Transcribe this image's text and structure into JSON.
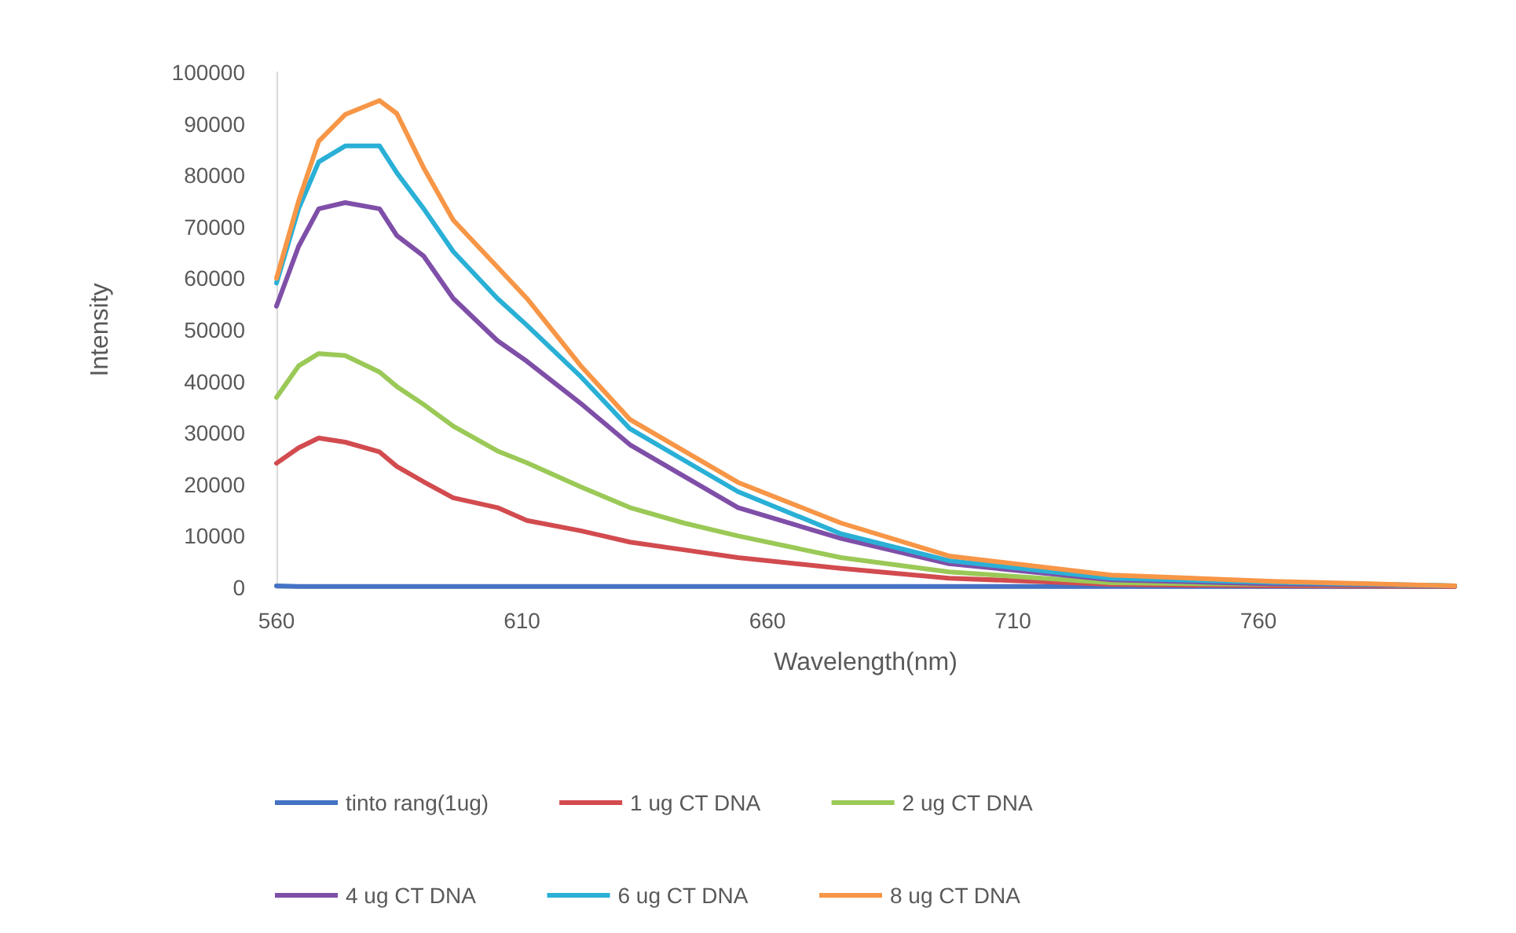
{
  "chart_data": {
    "type": "line",
    "xlabel": "Wavelength(nm)",
    "ylabel": "Intensity",
    "xlim": [
      560,
      800
    ],
    "xticks": [
      560,
      610,
      660,
      710,
      760
    ],
    "ylim": [
      0,
      100000
    ],
    "yticks": [
      0,
      10000,
      20000,
      30000,
      40000,
      50000,
      60000,
      70000,
      80000,
      90000,
      100000
    ],
    "grid": false,
    "legend": "bottom",
    "marker": "none",
    "line_style": "solid",
    "x": [
      560,
      564.5,
      568.6,
      574,
      581,
      584.5,
      590,
      596,
      605,
      611,
      622,
      632,
      643,
      654,
      675,
      697,
      730,
      763,
      800
    ],
    "series": [
      {
        "name": "tinto rang(1ug)",
        "color": "#4472c4",
        "values": [
          300,
          200,
          200,
          200,
          200,
          200,
          200,
          200,
          200,
          200,
          200,
          200,
          200,
          200,
          200,
          200,
          200,
          200,
          200
        ]
      },
      {
        "name": "1 ug CT DNA",
        "color": "#d24b4f",
        "values": [
          24100,
          27100,
          29000,
          28200,
          26300,
          23500,
          20500,
          17400,
          15500,
          13000,
          11000,
          8800,
          7300,
          5800,
          3700,
          1800,
          600,
          300,
          200
        ]
      },
      {
        "name": "2 ug CT DNA",
        "color": "#9bc957",
        "values": [
          36900,
          43000,
          45400,
          45000,
          41800,
          39000,
          35500,
          31300,
          26500,
          24200,
          19500,
          15500,
          12500,
          10000,
          5800,
          3000,
          900,
          600,
          300
        ]
      },
      {
        "name": "4 ug CT DNA",
        "color": "#7f4fa8",
        "values": [
          54600,
          66200,
          73500,
          74700,
          73500,
          68300,
          64300,
          56100,
          47900,
          43900,
          35700,
          27700,
          21600,
          15500,
          9500,
          4600,
          1500,
          700,
          300
        ]
      },
      {
        "name": "6 ug CT DNA",
        "color": "#2ab0d6",
        "values": [
          59100,
          73500,
          82600,
          85700,
          85700,
          80500,
          73500,
          65200,
          56100,
          50900,
          40900,
          30800,
          24700,
          18600,
          10400,
          5200,
          1800,
          1000,
          300
        ]
      },
      {
        "name": "8 ug CT DNA",
        "color": "#f79646",
        "values": [
          60000,
          75000,
          86600,
          91800,
          94500,
          92000,
          81400,
          71300,
          62200,
          56100,
          43000,
          32600,
          26500,
          20400,
          12500,
          6100,
          2400,
          1200,
          300
        ]
      }
    ]
  }
}
